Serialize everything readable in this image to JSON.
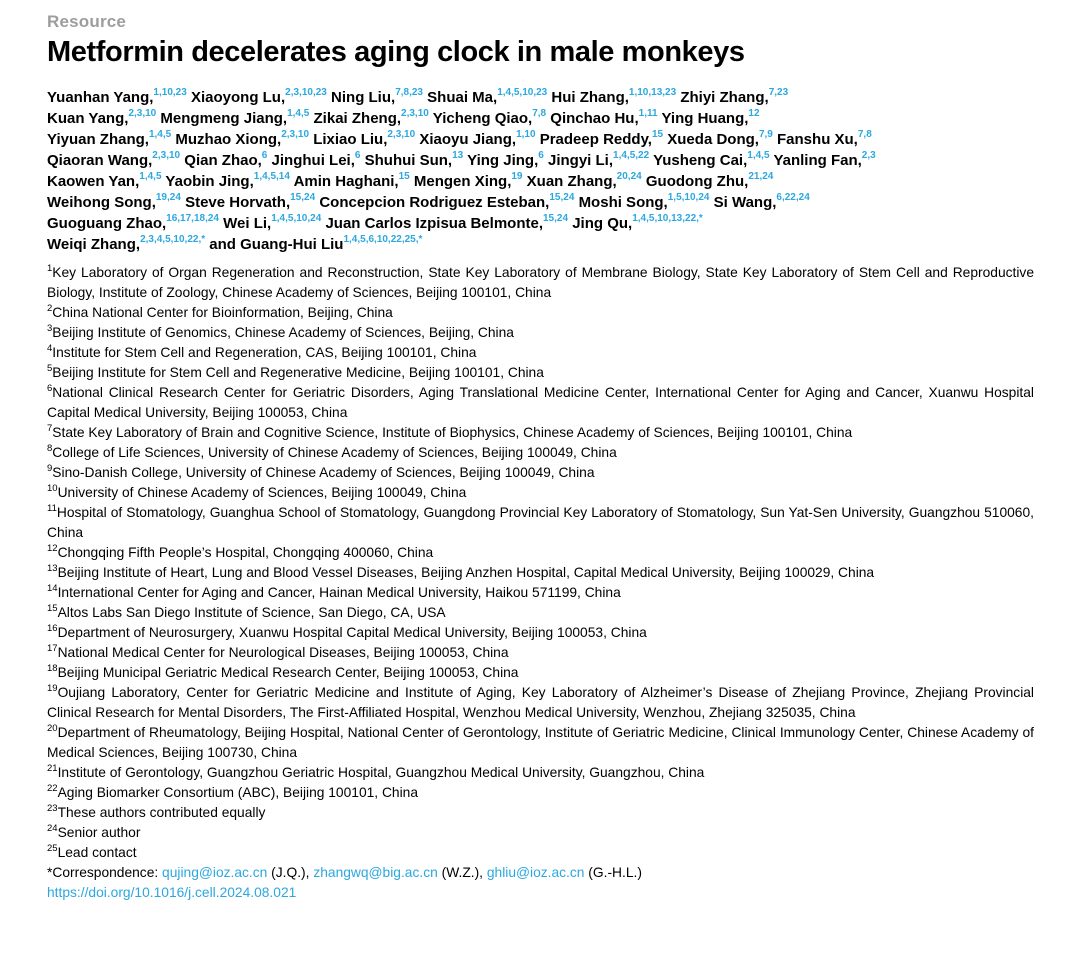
{
  "colors": {
    "accent_cyan": "#2ba8df",
    "kicker_gray": "#9d9d9d",
    "text_black": "#000000",
    "background": "#ffffff"
  },
  "kicker": "Resource",
  "title": "Metformin decelerates aging clock in male monkeys",
  "authors": {
    "lines": [
      [
        {
          "name": "Yuanhan Yang,",
          "sup": "1,10,23"
        },
        {
          "name": "Xiaoyong Lu,",
          "sup": "2,3,10,23"
        },
        {
          "name": "Ning Liu,",
          "sup": "7,8,23"
        },
        {
          "name": "Shuai Ma,",
          "sup": "1,4,5,10,23"
        },
        {
          "name": "Hui Zhang,",
          "sup": "1,10,13,23"
        },
        {
          "name": "Zhiyi Zhang,",
          "sup": "7,23"
        }
      ],
      [
        {
          "name": "Kuan Yang,",
          "sup": "2,3,10"
        },
        {
          "name": "Mengmeng Jiang,",
          "sup": "1,4,5"
        },
        {
          "name": "Zikai Zheng,",
          "sup": "2,3,10"
        },
        {
          "name": "Yicheng Qiao,",
          "sup": "7,8"
        },
        {
          "name": "Qinchao Hu,",
          "sup": "1,11"
        },
        {
          "name": "Ying Huang,",
          "sup": "12"
        }
      ],
      [
        {
          "name": "Yiyuan Zhang,",
          "sup": "1,4,5"
        },
        {
          "name": "Muzhao Xiong,",
          "sup": "2,3,10"
        },
        {
          "name": "Lixiao Liu,",
          "sup": "2,3,10"
        },
        {
          "name": "Xiaoyu Jiang,",
          "sup": "1,10"
        },
        {
          "name": "Pradeep Reddy,",
          "sup": "15"
        },
        {
          "name": "Xueda Dong,",
          "sup": "7,9"
        },
        {
          "name": "Fanshu Xu,",
          "sup": "7,8"
        }
      ],
      [
        {
          "name": "Qiaoran Wang,",
          "sup": "2,3,10"
        },
        {
          "name": "Qian Zhao,",
          "sup": "6"
        },
        {
          "name": "Jinghui Lei,",
          "sup": "6"
        },
        {
          "name": "Shuhui Sun,",
          "sup": "13"
        },
        {
          "name": "Ying Jing,",
          "sup": "6"
        },
        {
          "name": "Jingyi Li,",
          "sup": "1,4,5,22"
        },
        {
          "name": "Yusheng Cai,",
          "sup": "1,4,5"
        },
        {
          "name": "Yanling Fan,",
          "sup": "2,3"
        }
      ],
      [
        {
          "name": "Kaowen Yan,",
          "sup": "1,4,5"
        },
        {
          "name": "Yaobin Jing,",
          "sup": "1,4,5,14"
        },
        {
          "name": "Amin Haghani,",
          "sup": "15"
        },
        {
          "name": "Mengen Xing,",
          "sup": "19"
        },
        {
          "name": "Xuan Zhang,",
          "sup": "20,24"
        },
        {
          "name": "Guodong Zhu,",
          "sup": "21,24"
        }
      ],
      [
        {
          "name": "Weihong Song,",
          "sup": "19,24"
        },
        {
          "name": "Steve Horvath,",
          "sup": "15,24"
        },
        {
          "name": "Concepcion Rodriguez Esteban,",
          "sup": "15,24"
        },
        {
          "name": "Moshi Song,",
          "sup": "1,5,10,24"
        },
        {
          "name": "Si Wang,",
          "sup": "6,22,24"
        }
      ],
      [
        {
          "name": "Guoguang Zhao,",
          "sup": "16,17,18,24"
        },
        {
          "name": "Wei Li,",
          "sup": "1,4,5,10,24"
        },
        {
          "name": "Juan Carlos Izpisua Belmonte,",
          "sup": "15,24"
        },
        {
          "name": "Jing Qu,",
          "sup": "1,4,5,10,13,22,*"
        }
      ],
      [
        {
          "name": "Weiqi Zhang,",
          "sup": "2,3,4,5,10,22,*"
        },
        {
          "name": "and Guang-Hui Liu",
          "sup": "1,4,5,6,10,22,25,*"
        }
      ]
    ]
  },
  "affiliations": [
    {
      "sup": "1",
      "text": "Key Laboratory of Organ Regeneration and Reconstruction, State Key Laboratory of Membrane Biology, State Key Laboratory of Stem Cell and Reproductive Biology, Institute of Zoology, Chinese Academy of Sciences, Beijing 100101, China"
    },
    {
      "sup": "2",
      "text": "China National Center for Bioinformation, Beijing, China"
    },
    {
      "sup": "3",
      "text": "Beijing Institute of Genomics, Chinese Academy of Sciences, Beijing, China"
    },
    {
      "sup": "4",
      "text": "Institute for Stem Cell and Regeneration, CAS, Beijing 100101, China"
    },
    {
      "sup": "5",
      "text": "Beijing Institute for Stem Cell and Regenerative Medicine, Beijing 100101, China"
    },
    {
      "sup": "6",
      "text": "National Clinical Research Center for Geriatric Disorders, Aging Translational Medicine Center, International Center for Aging and Cancer, Xuanwu Hospital Capital Medical University, Beijing 100053, China"
    },
    {
      "sup": "7",
      "text": "State Key Laboratory of Brain and Cognitive Science, Institute of Biophysics, Chinese Academy of Sciences, Beijing 100101, China"
    },
    {
      "sup": "8",
      "text": "College of Life Sciences, University of Chinese Academy of Sciences, Beijing 100049, China"
    },
    {
      "sup": "9",
      "text": "Sino-Danish College, University of Chinese Academy of Sciences, Beijing 100049, China"
    },
    {
      "sup": "10",
      "text": "University of Chinese Academy of Sciences, Beijing 100049, China"
    },
    {
      "sup": "11",
      "text": "Hospital of Stomatology, Guanghua School of Stomatology, Guangdong Provincial Key Laboratory of Stomatology, Sun Yat-Sen University, Guangzhou 510060, China"
    },
    {
      "sup": "12",
      "text": "Chongqing Fifth People’s Hospital, Chongqing 400060, China"
    },
    {
      "sup": "13",
      "text": "Beijing Institute of Heart, Lung and Blood Vessel Diseases, Beijing Anzhen Hospital, Capital Medical University, Beijing 100029, China"
    },
    {
      "sup": "14",
      "text": "International Center for Aging and Cancer, Hainan Medical University, Haikou 571199, China"
    },
    {
      "sup": "15",
      "text": "Altos Labs San Diego Institute of Science, San Diego, CA, USA"
    },
    {
      "sup": "16",
      "text": "Department of Neurosurgery, Xuanwu Hospital Capital Medical University, Beijing 100053, China"
    },
    {
      "sup": "17",
      "text": "National Medical Center for Neurological Diseases, Beijing 100053, China"
    },
    {
      "sup": "18",
      "text": "Beijing Municipal Geriatric Medical Research Center, Beijing 100053, China"
    },
    {
      "sup": "19",
      "text": "Oujiang Laboratory, Center for Geriatric Medicine and Institute of Aging, Key Laboratory of Alzheimer’s Disease of Zhejiang Province, Zhejiang Provincial Clinical Research for Mental Disorders, The First-Affiliated Hospital, Wenzhou Medical University, Wenzhou, Zhejiang 325035, China"
    },
    {
      "sup": "20",
      "text": "Department of Rheumatology, Beijing Hospital, National Center of Gerontology, Institute of Geriatric Medicine, Clinical Immunology Center, Chinese Academy of Medical Sciences, Beijing 100730, China"
    },
    {
      "sup": "21",
      "text": "Institute of Gerontology, Guangzhou Geriatric Hospital, Guangzhou Medical University, Guangzhou, China"
    },
    {
      "sup": "22",
      "text": "Aging Biomarker Consortium (ABC), Beijing 100101, China"
    },
    {
      "sup": "23",
      "text": "These authors contributed equally"
    },
    {
      "sup": "24",
      "text": "Senior author"
    },
    {
      "sup": "25",
      "text": "Lead contact"
    }
  ],
  "correspondence": {
    "prefix": "*Correspondence: ",
    "items": [
      {
        "email": "qujing@ioz.ac.cn",
        "suffix": " (J.Q.), "
      },
      {
        "email": "zhangwq@big.ac.cn",
        "suffix": " (W.Z.), "
      },
      {
        "email": "ghliu@ioz.ac.cn",
        "suffix": " (G.-H.L.)"
      }
    ]
  },
  "doi": "https://doi.org/10.1016/j.cell.2024.08.021"
}
